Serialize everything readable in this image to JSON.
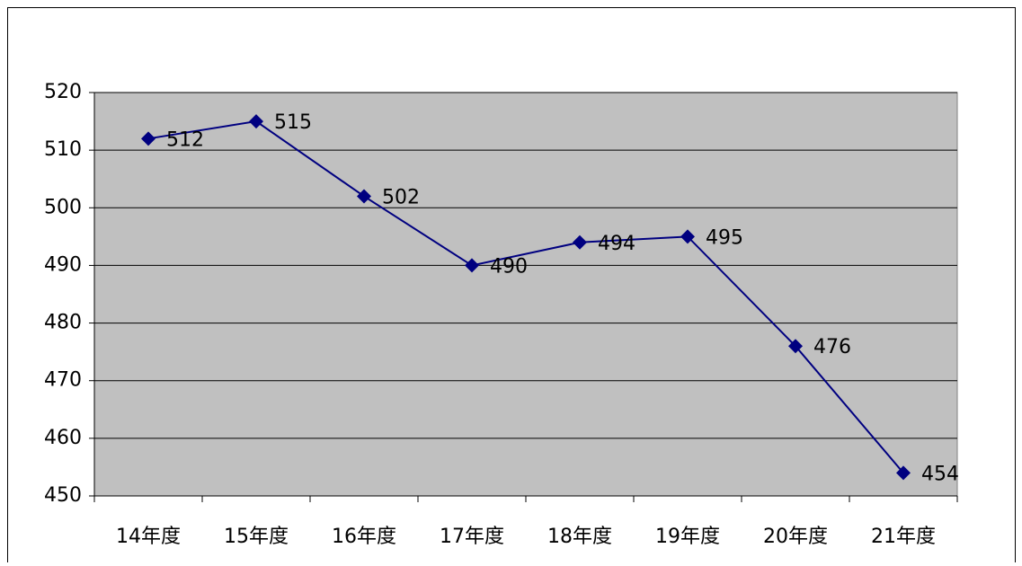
{
  "chart_data": {
    "type": "line",
    "categories": [
      "14年度",
      "15年度",
      "16年度",
      "17年度",
      "18年度",
      "19年度",
      "20年度",
      "21年度"
    ],
    "values": [
      512,
      515,
      502,
      490,
      494,
      495,
      476,
      454
    ],
    "color": "#000080",
    "plot_background": "#c0c0c0",
    "marker": "diamond",
    "ylim": [
      450,
      520
    ],
    "yticks": [
      450,
      460,
      470,
      480,
      490,
      500,
      510,
      520
    ],
    "grid": true
  }
}
